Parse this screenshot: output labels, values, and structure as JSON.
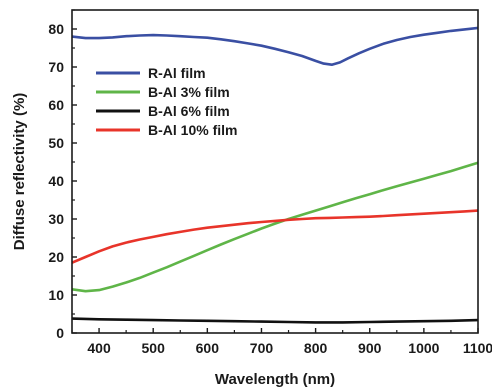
{
  "chart_data": {
    "type": "line",
    "xlabel": "Wavelength (nm)",
    "ylabel": "Diffuse reflectivity (%)",
    "xlim": [
      350,
      1100
    ],
    "ylim": [
      0,
      85
    ],
    "xticks": [
      400,
      500,
      600,
      700,
      800,
      900,
      1000,
      1100
    ],
    "yticks": [
      0,
      10,
      20,
      30,
      40,
      50,
      60,
      70,
      80
    ],
    "grid": false,
    "legend_position": "upper-left",
    "series": [
      {
        "name": "R-Al film",
        "color": "#3a4fa3",
        "x": [
          350,
          375,
          400,
          425,
          450,
          475,
          500,
          525,
          550,
          575,
          600,
          625,
          650,
          675,
          700,
          725,
          750,
          775,
          800,
          815,
          830,
          845,
          860,
          880,
          900,
          925,
          950,
          975,
          1000,
          1025,
          1050,
          1075,
          1100
        ],
        "y": [
          78,
          77.6,
          77.6,
          77.8,
          78.1,
          78.3,
          78.4,
          78.3,
          78.1,
          77.9,
          77.7,
          77.3,
          76.8,
          76.2,
          75.6,
          74.8,
          73.9,
          72.9,
          71.6,
          70.9,
          70.6,
          71.2,
          72.3,
          73.6,
          74.8,
          76.1,
          77.1,
          77.9,
          78.5,
          79,
          79.5,
          79.9,
          80.3
        ]
      },
      {
        "name": "B-Al 3% film",
        "color": "#5fb548",
        "x": [
          350,
          375,
          400,
          425,
          450,
          475,
          500,
          525,
          550,
          575,
          600,
          625,
          650,
          675,
          700,
          725,
          750,
          775,
          800,
          825,
          850,
          875,
          900,
          925,
          950,
          975,
          1000,
          1025,
          1050,
          1075,
          1100
        ],
        "y": [
          11.5,
          11,
          11.3,
          12.2,
          13.3,
          14.5,
          15.9,
          17.3,
          18.8,
          20.3,
          21.8,
          23.3,
          24.7,
          26.1,
          27.5,
          28.8,
          30,
          31.1,
          32.2,
          33.3,
          34.4,
          35.5,
          36.5,
          37.6,
          38.6,
          39.6,
          40.6,
          41.6,
          42.6,
          43.7,
          44.8
        ]
      },
      {
        "name": "B-Al 6% film",
        "color": "#111111",
        "x": [
          350,
          400,
          450,
          500,
          550,
          600,
          650,
          700,
          750,
          800,
          850,
          900,
          950,
          1000,
          1050,
          1100
        ],
        "y": [
          3.8,
          3.6,
          3.5,
          3.4,
          3.3,
          3.2,
          3.1,
          3,
          2.9,
          2.8,
          2.8,
          2.9,
          3,
          3.1,
          3.2,
          3.4
        ]
      },
      {
        "name": "B-Al 10% film",
        "color": "#e8342a",
        "x": [
          350,
          375,
          400,
          425,
          450,
          475,
          500,
          525,
          550,
          575,
          600,
          625,
          650,
          675,
          700,
          725,
          750,
          775,
          800,
          825,
          850,
          875,
          900,
          925,
          950,
          975,
          1000,
          1025,
          1050,
          1075,
          1100
        ],
        "y": [
          18.5,
          20,
          21.5,
          22.8,
          23.8,
          24.6,
          25.3,
          26,
          26.6,
          27.2,
          27.7,
          28.1,
          28.5,
          28.9,
          29.2,
          29.5,
          29.8,
          30,
          30.2,
          30.3,
          30.4,
          30.5,
          30.6,
          30.8,
          31,
          31.2,
          31.4,
          31.6,
          31.8,
          32,
          32.2
        ]
      }
    ]
  }
}
